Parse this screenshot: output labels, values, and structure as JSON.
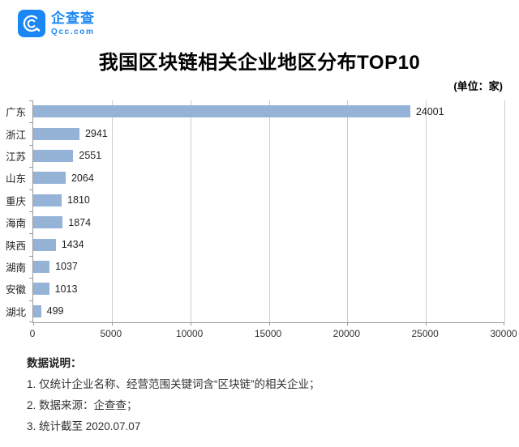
{
  "header": {
    "brand": "企查查",
    "domain": "Qcc.com",
    "brand_color": "#1b87f5"
  },
  "title": "我国区块链相关企业地区分布TOP10",
  "unit_label": "(单位：家)",
  "chart_data": {
    "type": "bar",
    "orientation": "horizontal",
    "title": "我国区块链相关企业地区分布TOP10",
    "unit": "家",
    "categories": [
      "广东",
      "浙江",
      "江苏",
      "山东",
      "重庆",
      "海南",
      "陕西",
      "湖南",
      "安徽",
      "湖北"
    ],
    "values": [
      24001,
      2941,
      2551,
      2064,
      1810,
      1874,
      1434,
      1037,
      1013,
      499
    ],
    "xlim": [
      0,
      30000
    ],
    "x_ticks": [
      0,
      5000,
      10000,
      15000,
      20000,
      25000,
      30000
    ],
    "bar_color": "#95b3d7",
    "grid": true,
    "legend": false,
    "value_labels": true
  },
  "notes": {
    "heading": "数据说明：",
    "items": [
      "1. 仅统计企业名称、经营范围关键词含“区块链”的相关企业；",
      "2. 数据来源：企查查；",
      "3. 统计截至 2020.07.07"
    ]
  }
}
